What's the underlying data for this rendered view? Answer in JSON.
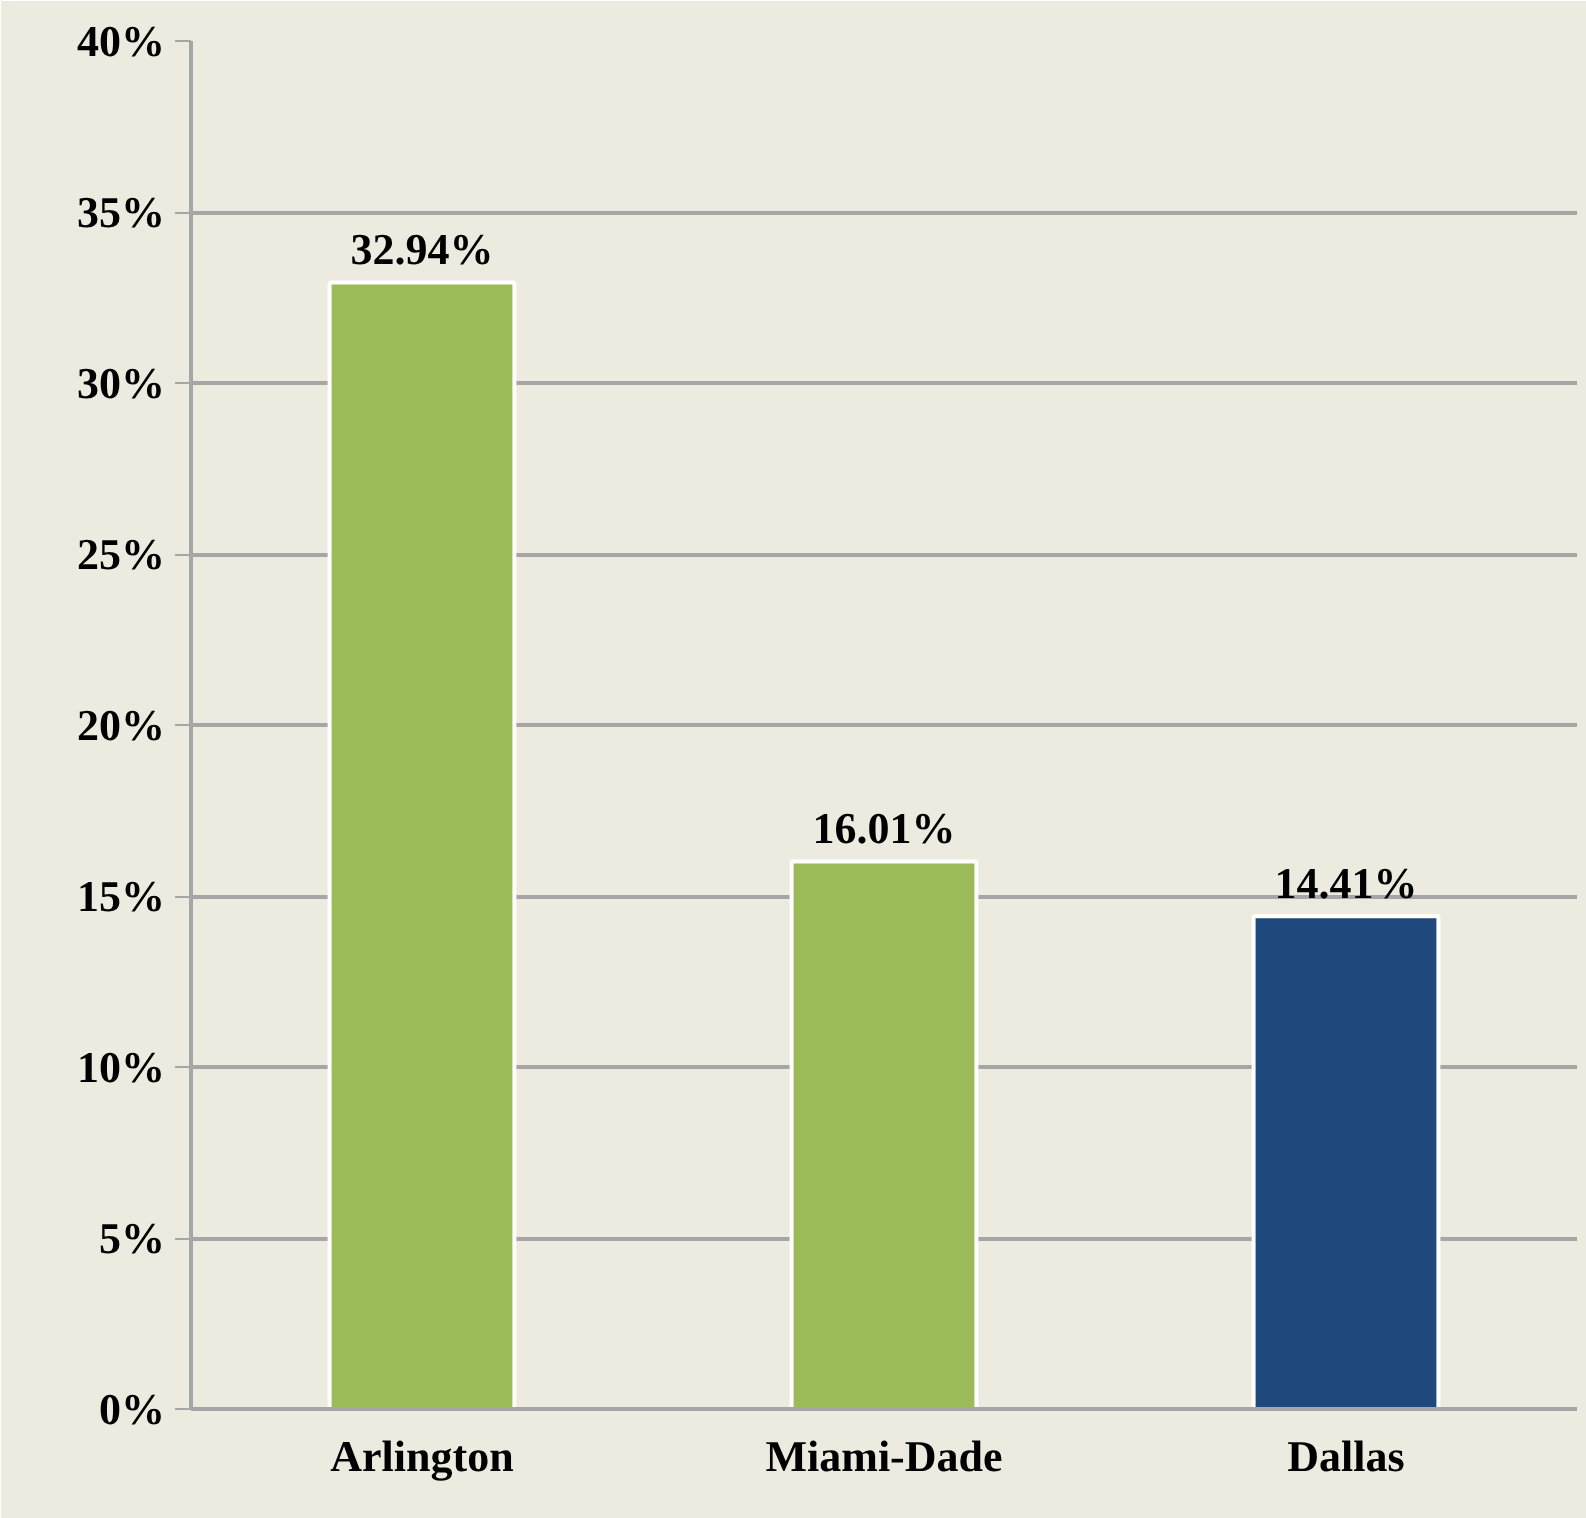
{
  "chart_data": {
    "type": "bar",
    "categories": [
      "Arlington",
      "Miami-Dade",
      "Dallas"
    ],
    "values": [
      32.94,
      16.01,
      14.41
    ],
    "colors": [
      "#9bbb59",
      "#9bbb59",
      "#1f497d"
    ],
    "value_labels": [
      "32.94%",
      "16.01%",
      "14.41%"
    ],
    "ylim": [
      0,
      40
    ],
    "yticks": [
      {
        "value": 0,
        "label": "0%"
      },
      {
        "value": 5,
        "label": "5%"
      },
      {
        "value": 10,
        "label": "10%"
      },
      {
        "value": 15,
        "label": "15%"
      },
      {
        "value": 20,
        "label": "20%"
      },
      {
        "value": 25,
        "label": "25%"
      },
      {
        "value": 30,
        "label": "30%"
      },
      {
        "value": 35,
        "label": "35%"
      },
      {
        "value": 40,
        "label": "40%"
      }
    ],
    "grid": "y"
  }
}
